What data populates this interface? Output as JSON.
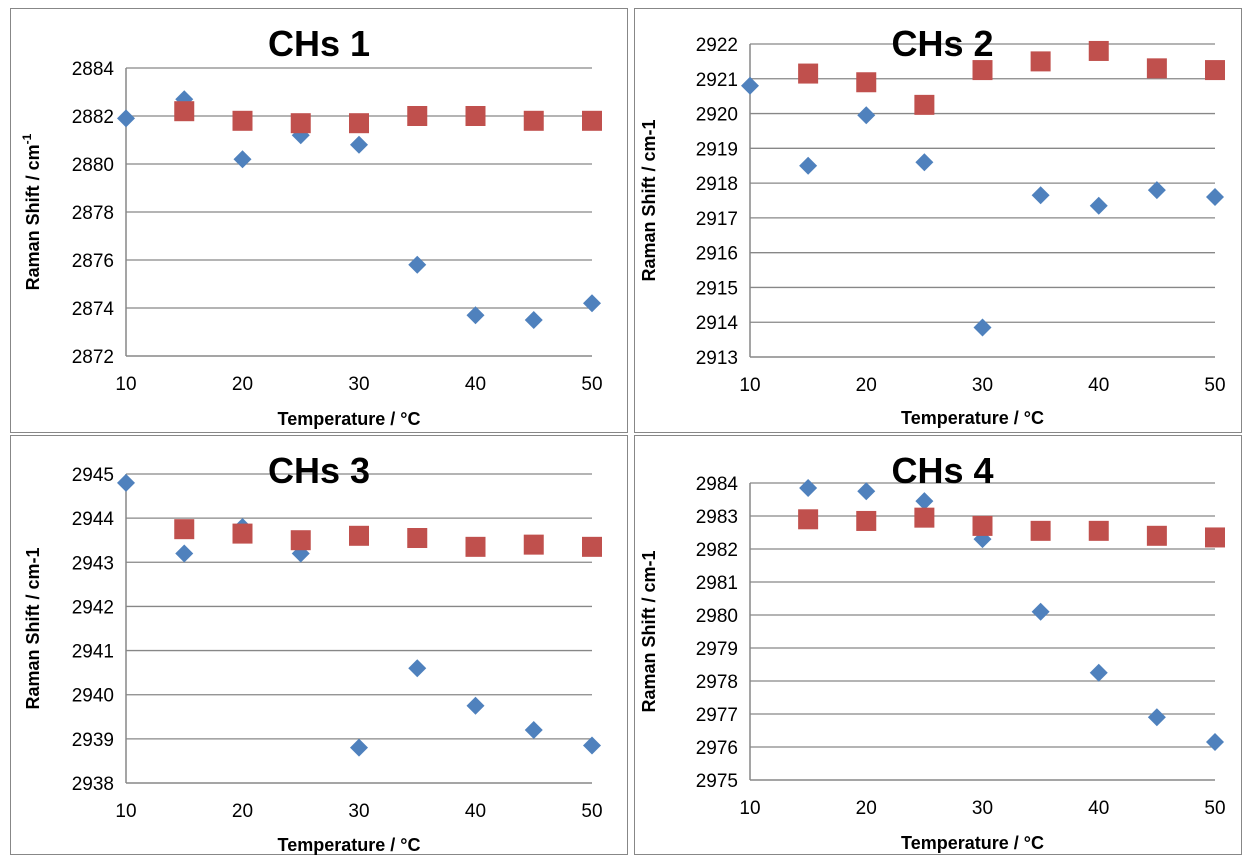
{
  "chart_data": [
    {
      "type": "scatter",
      "title": "CHs 1",
      "xlabel": "Temperature / °C",
      "ylabel": "Raman Shift / cm",
      "ylabel_sup": "-1",
      "xlim": [
        10,
        50
      ],
      "ylim": [
        2872,
        2884
      ],
      "xticks": [
        "10",
        "20",
        "30",
        "40",
        "50"
      ],
      "yticks": [
        "2872",
        "2874",
        "2876",
        "2878",
        "2880",
        "2882",
        "2884"
      ],
      "grid": true,
      "series": [
        {
          "marker": "diamond",
          "color": "#4f81bd",
          "x": [
            10,
            15,
            20,
            25,
            30,
            35,
            40,
            45,
            50
          ],
          "y": [
            2881.9,
            2882.7,
            2880.2,
            2881.2,
            2880.8,
            2875.8,
            2873.7,
            2873.5,
            2874.2
          ]
        },
        {
          "marker": "square",
          "color": "#c0504d",
          "x": [
            15,
            20,
            25,
            30,
            35,
            40,
            45,
            50
          ],
          "y": [
            2882.2,
            2881.8,
            2881.7,
            2881.7,
            2882.0,
            2882.0,
            2881.8,
            2881.8
          ]
        }
      ]
    },
    {
      "type": "scatter",
      "title": "CHs 2",
      "xlabel": "Temperature / °C",
      "ylabel": "Raman Shift / cm-1",
      "xlim": [
        10,
        50
      ],
      "ylim": [
        2913,
        2922
      ],
      "xticks": [
        "10",
        "20",
        "30",
        "40",
        "50"
      ],
      "yticks": [
        "2913",
        "2914",
        "2915",
        "2916",
        "2917",
        "2918",
        "2919",
        "2920",
        "2921",
        "2922"
      ],
      "grid": true,
      "series": [
        {
          "marker": "diamond",
          "color": "#4f81bd",
          "x": [
            10,
            15,
            20,
            25,
            30,
            35,
            40,
            45,
            50
          ],
          "y": [
            2920.8,
            2918.5,
            2919.95,
            2918.6,
            2913.85,
            2917.65,
            2917.35,
            2917.8,
            2917.6
          ]
        },
        {
          "marker": "square",
          "color": "#c0504d",
          "x": [
            15,
            20,
            25,
            30,
            35,
            40,
            45,
            50
          ],
          "y": [
            2921.15,
            2920.9,
            2920.25,
            2921.25,
            2921.5,
            2921.8,
            2921.3,
            2921.25
          ]
        }
      ]
    },
    {
      "type": "scatter",
      "title": "CHs 3",
      "xlabel": "Temperature / °C",
      "ylabel": "Raman Shift / cm-1",
      "xlim": [
        10,
        50
      ],
      "ylim": [
        2938,
        2945
      ],
      "xticks": [
        "10",
        "20",
        "30",
        "40",
        "50"
      ],
      "yticks": [
        "2938",
        "2939",
        "2940",
        "2941",
        "2942",
        "2943",
        "2944",
        "2945"
      ],
      "grid": true,
      "series": [
        {
          "marker": "diamond",
          "color": "#4f81bd",
          "x": [
            10,
            15,
            20,
            25,
            30,
            35,
            40,
            45,
            50
          ],
          "y": [
            2944.8,
            2943.2,
            2943.8,
            2943.2,
            2938.8,
            2940.6,
            2939.75,
            2939.2,
            2938.85
          ]
        },
        {
          "marker": "square",
          "color": "#c0504d",
          "x": [
            15,
            20,
            25,
            30,
            35,
            40,
            45,
            50
          ],
          "y": [
            2943.75,
            2943.65,
            2943.5,
            2943.6,
            2943.55,
            2943.35,
            2943.4,
            2943.35
          ]
        }
      ]
    },
    {
      "type": "scatter",
      "title": "CHs 4",
      "xlabel": "Temperature / °C",
      "ylabel": "Raman Shift / cm-1",
      "xlim": [
        10,
        50
      ],
      "ylim": [
        2975,
        2984
      ],
      "xticks": [
        "10",
        "20",
        "30",
        "40",
        "50"
      ],
      "yticks": [
        "2975",
        "2976",
        "2977",
        "2978",
        "2979",
        "2980",
        "2981",
        "2982",
        "2983",
        "2984"
      ],
      "grid": true,
      "series": [
        {
          "marker": "diamond",
          "color": "#4f81bd",
          "x": [
            15,
            20,
            25,
            30,
            35,
            40,
            45,
            50
          ],
          "y": [
            2983.85,
            2983.75,
            2983.45,
            2982.3,
            2980.1,
            2978.25,
            2976.9,
            2976.15
          ]
        },
        {
          "marker": "square",
          "color": "#c0504d",
          "x": [
            15,
            20,
            25,
            30,
            35,
            40,
            45,
            50
          ],
          "y": [
            2982.9,
            2982.85,
            2982.95,
            2982.7,
            2982.55,
            2982.55,
            2982.4,
            2982.35
          ]
        }
      ]
    }
  ]
}
